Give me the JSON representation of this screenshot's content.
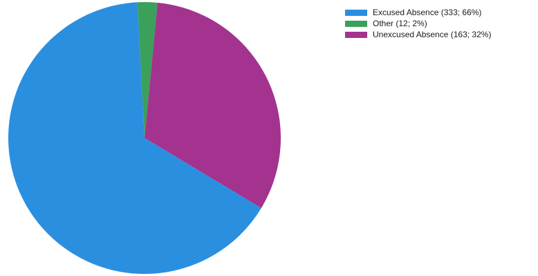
{
  "chart_data": {
    "type": "pie",
    "slices": [
      {
        "label": "Excused Absence",
        "value": 333,
        "percent": 66,
        "color": "#2b8fe0",
        "legend_text": "Excused Absence (333; 66%)"
      },
      {
        "label": "Other",
        "value": 12,
        "percent": 2,
        "color": "#3aa05a",
        "legend_text": "Other (12; 2%)"
      },
      {
        "label": "Unexcused Absence",
        "value": 163,
        "percent": 32,
        "color": "#a3338f",
        "legend_text": "Unexcused Absence (163; 32%)"
      }
    ],
    "legend_position": "top-right",
    "start_angle": "top, clockwise, Other first",
    "title": ""
  }
}
